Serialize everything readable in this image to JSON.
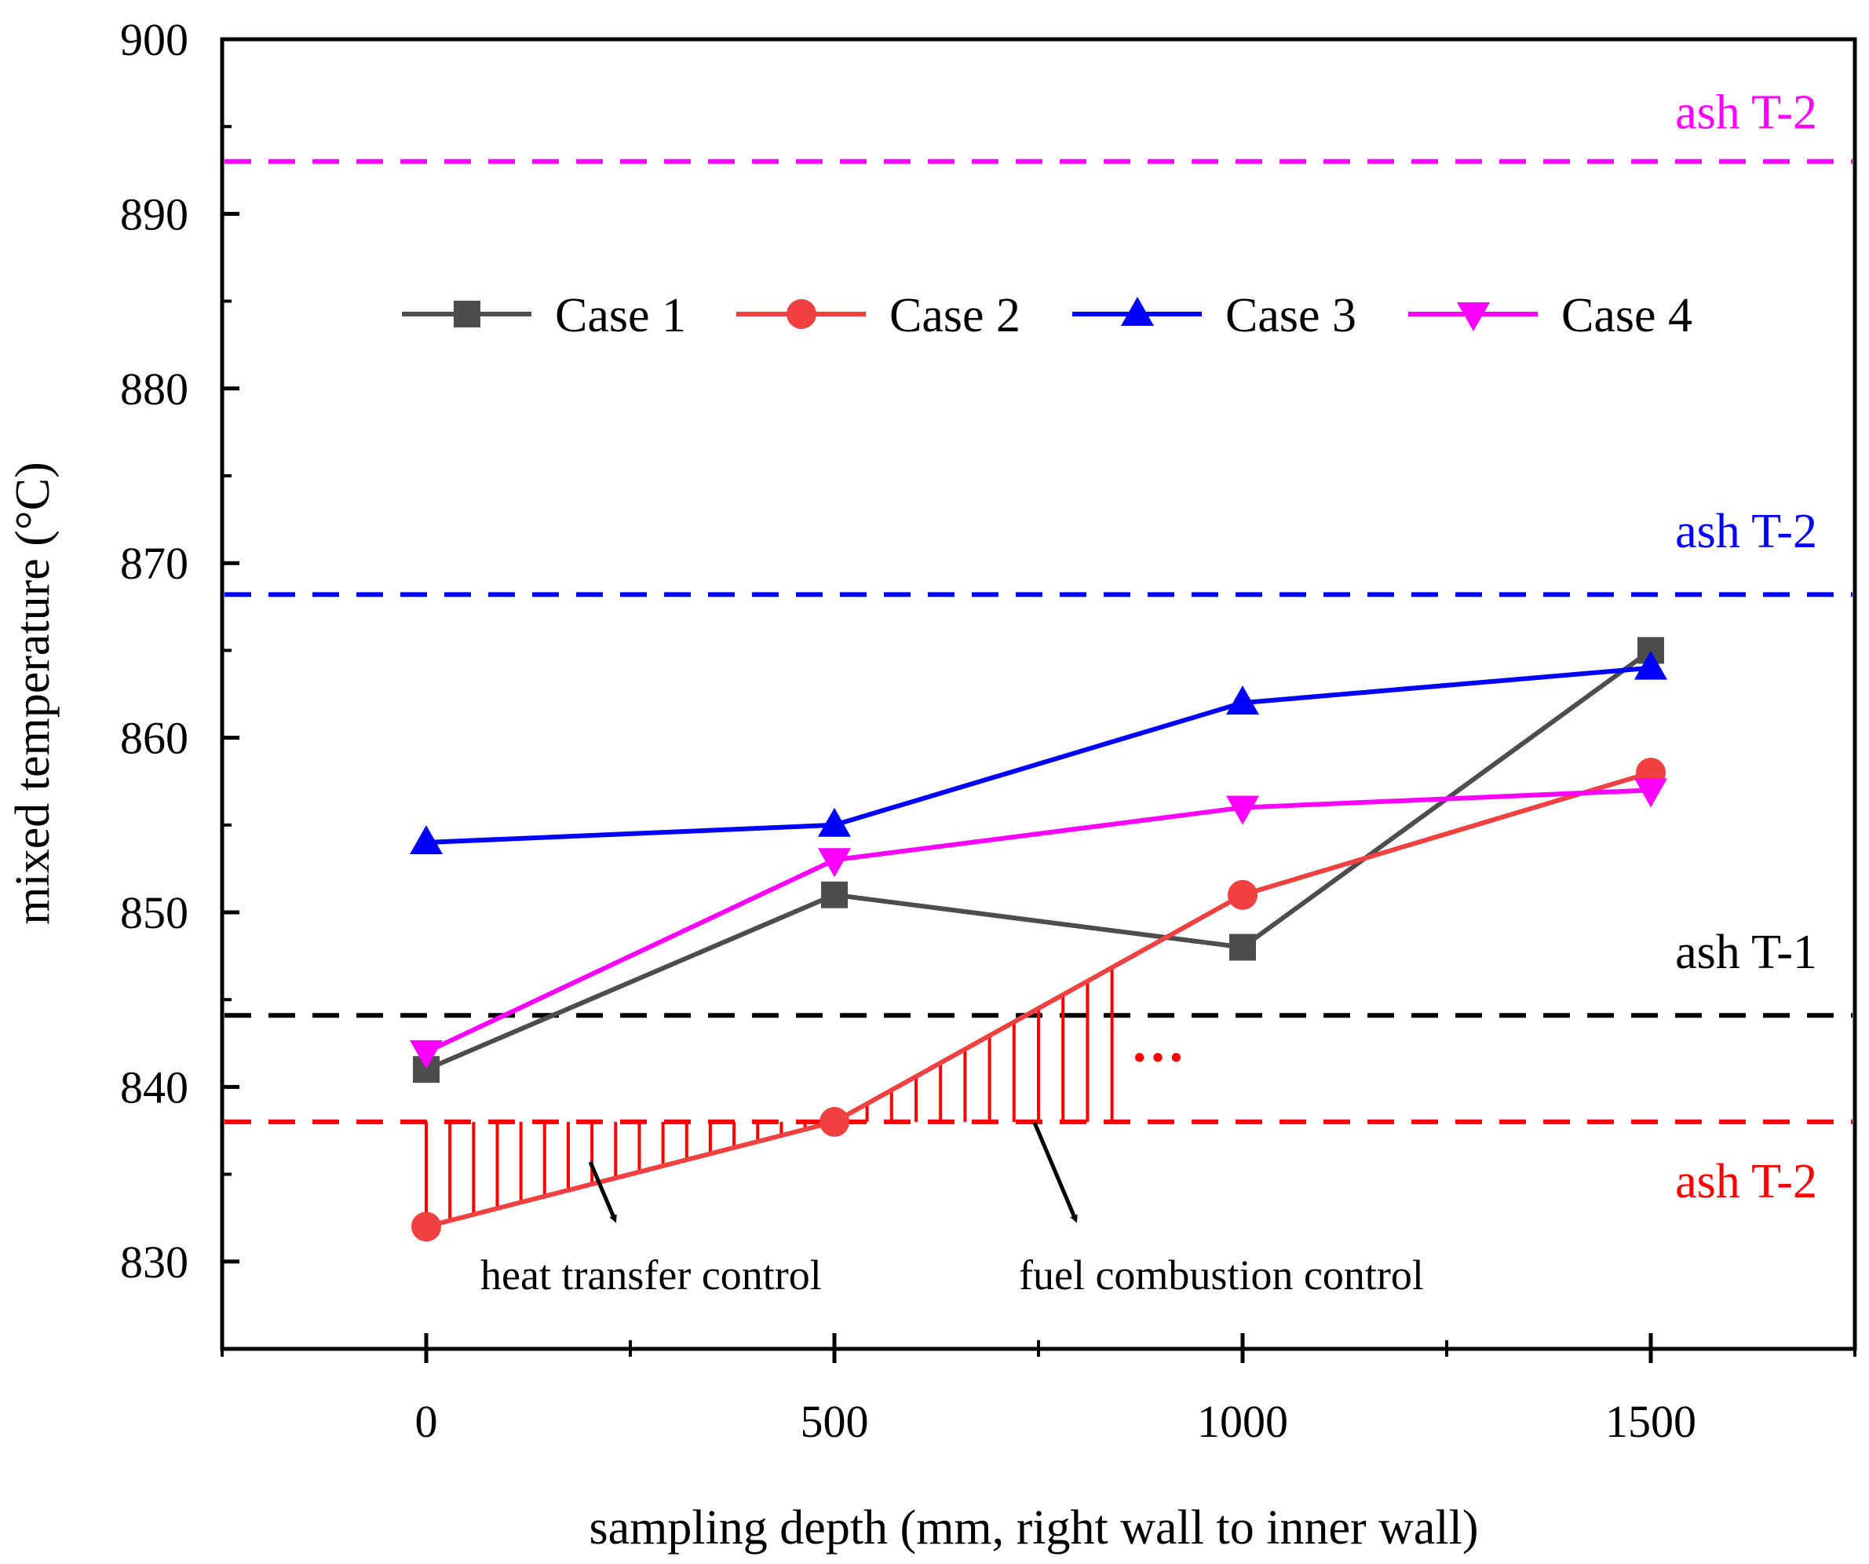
{
  "chart_data": {
    "type": "line",
    "xlabel": "sampling depth (mm, right wall to inner wall)",
    "ylabel": "mixed temperature (°C)",
    "xlim": [
      -250,
      1750
    ],
    "ylim": [
      825,
      900
    ],
    "x_ticks": [
      0,
      500,
      1000,
      1500
    ],
    "x_tick_labels": [
      "0",
      "500",
      "1000",
      "1500"
    ],
    "y_ticks": [
      830,
      840,
      850,
      860,
      870,
      880,
      890,
      900
    ],
    "y_tick_labels": [
      "830",
      "840",
      "850",
      "860",
      "870",
      "880",
      "890",
      "900"
    ],
    "x": [
      0,
      500,
      1000,
      1500
    ],
    "series": [
      {
        "name": "Case 1",
        "values": [
          841,
          851,
          848,
          865
        ],
        "color": "#4d4d4d",
        "marker": "square"
      },
      {
        "name": "Case 2",
        "values": [
          832,
          838,
          851,
          858
        ],
        "color": "#f04040",
        "marker": "circle"
      },
      {
        "name": "Case 3",
        "values": [
          854,
          855,
          862,
          864
        ],
        "color": "#0000ff",
        "marker": "triangle-up"
      },
      {
        "name": "Case 4",
        "values": [
          842,
          853,
          856,
          857
        ],
        "color": "#ff00ff",
        "marker": "triangle-down"
      }
    ],
    "reference_lines": [
      {
        "y": 893,
        "label": "ash T-2",
        "color": "#ff00ff"
      },
      {
        "y": 868.2,
        "label": "ash T-2",
        "color": "#0000ff"
      },
      {
        "y": 844.1,
        "label": "ash T-1",
        "color": "#000000"
      },
      {
        "y": 838,
        "label": "ash T-2",
        "color": "#ff0000"
      }
    ],
    "annotations": [
      {
        "text": "heat transfer control"
      },
      {
        "text": "fuel combustion control"
      },
      {
        "text": "···"
      }
    ],
    "legend_position": "top-center",
    "grid": false
  }
}
